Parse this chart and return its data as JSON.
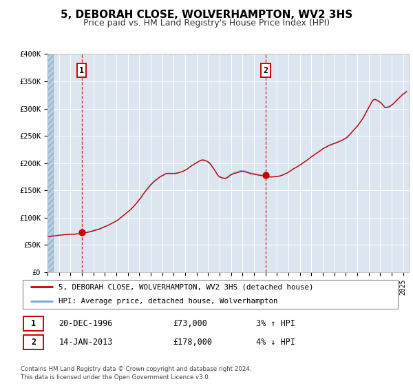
{
  "title": "5, DEBORAH CLOSE, WOLVERHAMPTON, WV2 3HS",
  "subtitle": "Price paid vs. HM Land Registry's House Price Index (HPI)",
  "ylim": [
    0,
    400000
  ],
  "yticks": [
    0,
    50000,
    100000,
    150000,
    200000,
    250000,
    300000,
    350000,
    400000
  ],
  "ytick_labels": [
    "£0",
    "£50K",
    "£100K",
    "£150K",
    "£200K",
    "£250K",
    "£300K",
    "£350K",
    "£400K"
  ],
  "xlim_start": 1994.0,
  "xlim_end": 2025.5,
  "hpi_color": "#6fa8dc",
  "price_color": "#cc0000",
  "marker_color": "#cc0000",
  "sale1_year": 1996.97,
  "sale1_price": 73000,
  "sale2_year": 2013.04,
  "sale2_price": 178000,
  "sale1_date": "20-DEC-1996",
  "sale1_hpi_pct": "3%",
  "sale1_hpi_dir": "↑",
  "sale2_date": "14-JAN-2013",
  "sale2_hpi_pct": "4%",
  "sale2_hpi_dir": "↓",
  "legend_line1": "5, DEBORAH CLOSE, WOLVERHAMPTON, WV2 3HS (detached house)",
  "legend_line2": "HPI: Average price, detached house, Wolverhampton",
  "footnote1": "Contains HM Land Registry data © Crown copyright and database right 2024.",
  "footnote2": "This data is licensed under the Open Government Licence v3.0.",
  "bg_color": "#ffffff",
  "plot_bg_color": "#dce6f0",
  "hatch_color": "#b8cfe0",
  "grid_color": "#ffffff",
  "title_fontsize": 11,
  "subtitle_fontsize": 9
}
